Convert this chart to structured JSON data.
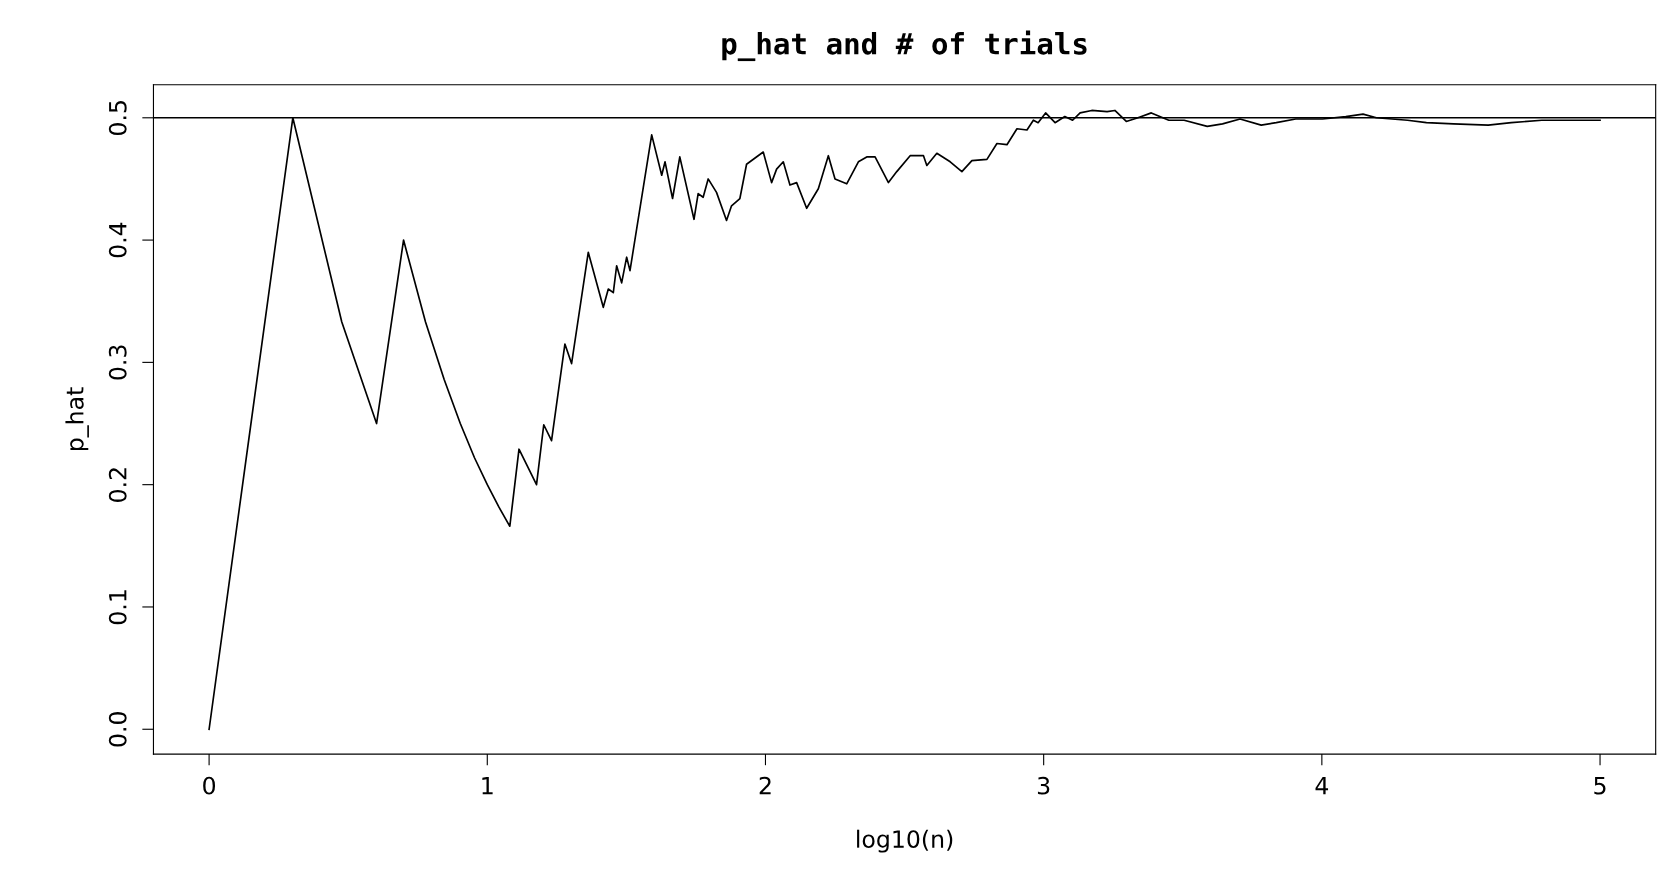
{
  "chart_data": {
    "type": "line",
    "title": "p_hat and # of trials",
    "xlabel": "log10(n)",
    "ylabel": "p_hat",
    "x": [
      0,
      0.301,
      0.477,
      0.602,
      0.699,
      0.778,
      0.845,
      0.903,
      0.954,
      1.0,
      1.041,
      1.081,
      1.114,
      1.177,
      1.203,
      1.231,
      1.279,
      1.303,
      1.363,
      1.417,
      1.435,
      1.453,
      1.465,
      1.483,
      1.501,
      1.513,
      1.591,
      1.627,
      1.639,
      1.666,
      1.692,
      1.743,
      1.758,
      1.776,
      1.794,
      1.824,
      1.86,
      1.878,
      1.908,
      1.932,
      1.992,
      2.022,
      2.04,
      2.064,
      2.088,
      2.112,
      2.148,
      2.19,
      2.226,
      2.25,
      2.292,
      2.334,
      2.364,
      2.394,
      2.442,
      2.472,
      2.52,
      2.568,
      2.58,
      2.616,
      2.664,
      2.706,
      2.742,
      2.796,
      2.832,
      2.868,
      2.904,
      2.94,
      2.963,
      2.98,
      3.007,
      3.041,
      3.076,
      3.104,
      3.131,
      3.173,
      3.228,
      3.256,
      3.297,
      3.339,
      3.387,
      3.45,
      3.505,
      3.588,
      3.643,
      3.706,
      3.782,
      3.836,
      3.906,
      4.002,
      4.086,
      4.148,
      4.196,
      4.308,
      4.376,
      4.473,
      4.598,
      4.681,
      4.791,
      4.888,
      5.0
    ],
    "values": [
      0,
      0.5,
      0.333,
      0.25,
      0.4,
      0.333,
      0.286,
      0.25,
      0.222,
      0.2,
      0.182,
      0.166,
      0.229,
      0.2,
      0.249,
      0.236,
      0.315,
      0.299,
      0.39,
      0.345,
      0.36,
      0.357,
      0.379,
      0.365,
      0.386,
      0.375,
      0.486,
      0.453,
      0.464,
      0.434,
      0.468,
      0.417,
      0.438,
      0.435,
      0.45,
      0.439,
      0.416,
      0.428,
      0.434,
      0.462,
      0.472,
      0.447,
      0.458,
      0.464,
      0.445,
      0.447,
      0.426,
      0.442,
      0.469,
      0.45,
      0.446,
      0.464,
      0.468,
      0.468,
      0.447,
      0.456,
      0.469,
      0.469,
      0.461,
      0.471,
      0.464,
      0.456,
      0.465,
      0.466,
      0.479,
      0.478,
      0.491,
      0.49,
      0.498,
      0.496,
      0.504,
      0.496,
      0.501,
      0.498,
      0.504,
      0.506,
      0.505,
      0.506,
      0.497,
      0.5,
      0.504,
      0.498,
      0.498,
      0.493,
      0.495,
      0.499,
      0.494,
      0.496,
      0.499,
      0.499,
      0.501,
      0.503,
      0.5,
      0.498,
      0.496,
      0.495,
      0.494,
      0.496,
      0.498,
      0.498,
      0.498
    ],
    "color": "#000000",
    "xlim": [
      -0.2,
      5.2
    ],
    "ylim": [
      -0.0203,
      0.527
    ],
    "xticks": [
      0,
      1,
      2,
      3,
      4,
      5
    ],
    "yticks": [
      {
        "value": 0,
        "label": "0.0"
      },
      0.1,
      0.2,
      0.3,
      0.4,
      0.5
    ],
    "ref_lines": [
      {
        "axis": "y",
        "value": 0.5,
        "color": "#000000"
      }
    ],
    "grid": false,
    "legend": false
  }
}
